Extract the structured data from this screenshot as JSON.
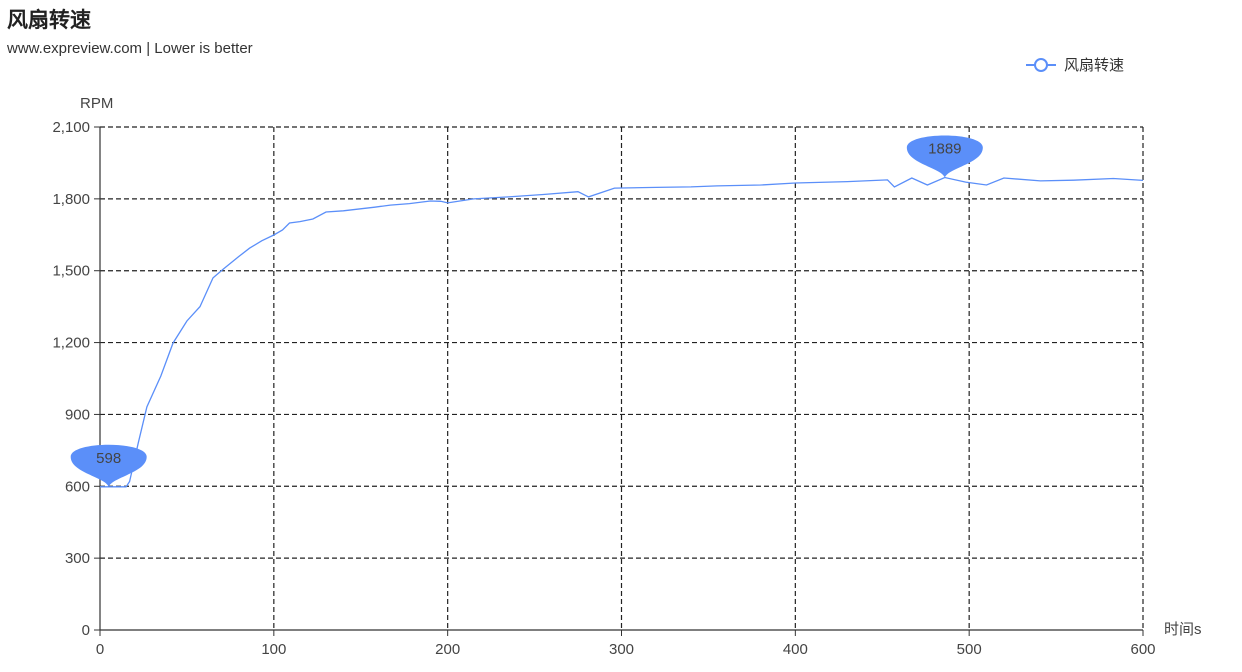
{
  "title": "风扇转速",
  "subtitle": "www.expreview.com  | Lower is better",
  "legend": {
    "label": "风扇转速",
    "icon": "circle-line-icon"
  },
  "chart_data": {
    "type": "line",
    "title": "风扇转速",
    "xlabel": "时间s",
    "ylabel": "RPM",
    "xlim": [
      0,
      600
    ],
    "ylim": [
      0,
      2100
    ],
    "x_ticks": [
      "0",
      "100",
      "200",
      "300",
      "400",
      "500",
      "600"
    ],
    "y_ticks": [
      "0",
      "300",
      "600",
      "900",
      "1,200",
      "1,500",
      "1,800",
      "2,100"
    ],
    "grid": true,
    "legend_position": "top-right",
    "color": "#5b8ff9",
    "series": [
      {
        "name": "风扇转速",
        "x": [
          0,
          5,
          10,
          15,
          17,
          22,
          27,
          35,
          42,
          50,
          57.5,
          65,
          71,
          80,
          86,
          93,
          100,
          105,
          109,
          115,
          122.5,
          130,
          140,
          148,
          158,
          167,
          178,
          190,
          196,
          200,
          215,
          235,
          255,
          275,
          281,
          296,
          320,
          340,
          355,
          380,
          400,
          430,
          453,
          457,
          467,
          476,
          486,
          498,
          510,
          520,
          541,
          560,
          583,
          600
        ],
        "values": [
          598,
          598,
          598,
          598,
          620,
          780,
          932,
          1060,
          1198,
          1290,
          1350,
          1470,
          1507,
          1560,
          1594,
          1625,
          1649,
          1670,
          1699,
          1705,
          1716,
          1745,
          1750,
          1757,
          1765,
          1774,
          1780,
          1791,
          1790,
          1783,
          1800,
          1808,
          1818,
          1830,
          1808,
          1845,
          1848,
          1850,
          1854,
          1858,
          1866,
          1872,
          1879,
          1850,
          1887,
          1858,
          1889,
          1870,
          1858,
          1887,
          1875,
          1878,
          1885,
          1877
        ]
      }
    ],
    "annotations": [
      {
        "label": "598",
        "x": 5,
        "y": 598,
        "kind": "min"
      },
      {
        "label": "1889",
        "x": 486,
        "y": 1889,
        "kind": "max"
      }
    ]
  }
}
